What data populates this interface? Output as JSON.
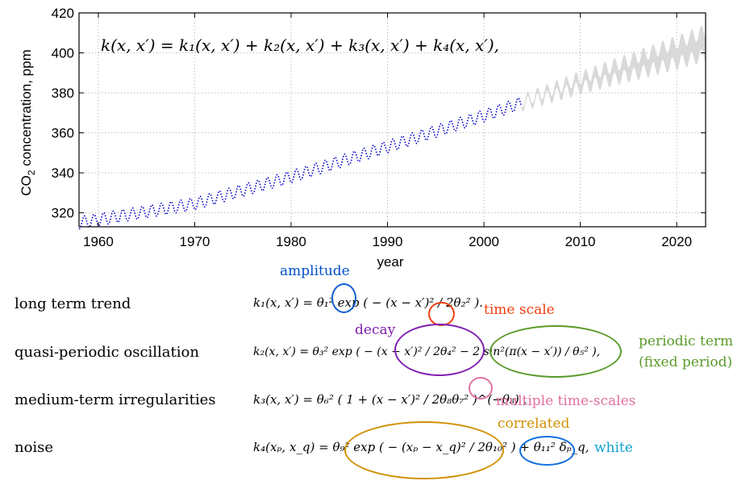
{
  "chart_data": {
    "type": "line",
    "title": "",
    "xlabel": "year",
    "ylabel": "CO2 concentration, ppm",
    "xlim": [
      1958,
      2023
    ],
    "ylim": [
      313,
      420
    ],
    "xticks": [
      1960,
      1970,
      1980,
      1990,
      2000,
      2010,
      2020
    ],
    "yticks": [
      320,
      340,
      360,
      380,
      400,
      420
    ],
    "grid": true,
    "series": [
      {
        "style": "dotted",
        "color": "#0000cc",
        "x_range": [
          1958,
          2003.9
        ],
        "trend_anchors": [
          [
            1958,
            315.0
          ],
          [
            1970,
            324.5
          ],
          [
            1980,
            338.0
          ],
          [
            1990,
            353.0
          ],
          [
            2000,
            368.5
          ],
          [
            2003.9,
            375.0
          ]
        ],
        "seasonal_amplitude_ppm": 3.0
      },
      {
        "style": "band",
        "color": "#d9d9d9",
        "x_range": [
          2003.9,
          2023
        ],
        "trend_anchors": [
          [
            2003.9,
            375.0
          ],
          [
            2010,
            385.0
          ],
          [
            2015,
            392.5
          ],
          [
            2020,
            400.0
          ],
          [
            2023,
            405.0
          ]
        ],
        "seasonal_amplitude_ppm": 3.5,
        "band_half_width_start_ppm": 1.0,
        "band_half_width_end_ppm": 6.0
      }
    ],
    "annotations": [
      "k(x,x') = k1(x,x') + k2(x,x') + k3(x,x') + k4(x,x'),"
    ]
  },
  "figure": {
    "kernel_sum": "k(x, x′)  =  k₁(x, x′) + k₂(x, x′) + k₃(x, x′) + k₄(x, x′),",
    "x_tick_labels": [
      "1960",
      "1970",
      "1980",
      "1990",
      "2000",
      "2010",
      "2020"
    ],
    "y_tick_labels": [
      "320",
      "340",
      "360",
      "380",
      "400",
      "420"
    ],
    "xlabel": "year",
    "ylabel_prefix": "CO",
    "ylabel_sub": "2",
    "ylabel_suffix": " concentration, ppm"
  },
  "rows": [
    {
      "label": "long term trend",
      "formula": "k₁(x, x′)  = θ₁² exp ( − (x − x′)² / 2θ₂² ).",
      "annotations": [
        {
          "text": "amplitude",
          "color": "#0050c8"
        },
        {
          "text": "time scale",
          "color": "#f04010"
        }
      ]
    },
    {
      "label": "quasi-periodic oscillation",
      "formula": "k₂(x, x′)  =  θ₃² exp ( − (x − x′)² / 2θ₄² − 2 sin²(π(x − x′)) / θ₅² ),",
      "annotations": [
        {
          "text": "decay",
          "color": "#8020b0"
        },
        {
          "text": "periodic term",
          "color": "#5a9a2a"
        },
        {
          "text": "(fixed period)",
          "color": "#5a9a2a"
        }
      ]
    },
    {
      "label": "medium-term irregularities",
      "formula": "k₃(x, x′)  =  θ₆² ( 1 + (x − x′)² / 2θ₈θ₇² )^(−θ₈) ,",
      "annotations": [
        {
          "text": "multiple time-scales",
          "color": "#e070a0"
        }
      ]
    },
    {
      "label": "noise",
      "formula": "k₄(xₚ, x_q)  =  θ₉² exp ( − (xₚ − x_q)² / 2θ₁₀² ) + θ₁₁² δₚ_q,",
      "annotations": [
        {
          "text": "correlated",
          "color": "#d09000"
        },
        {
          "text": "white",
          "color": "#10a0d0"
        }
      ]
    }
  ]
}
